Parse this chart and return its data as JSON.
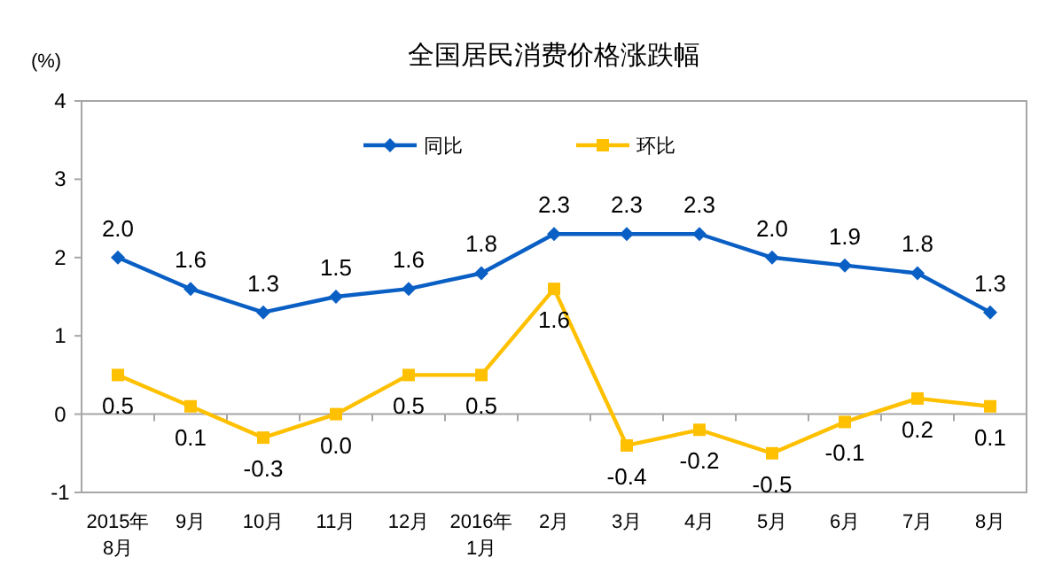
{
  "chart_data": {
    "type": "line",
    "title": "全国居民消费价格涨跌幅",
    "ylabel": "(%)",
    "categories": [
      "2015年\n8月",
      "9月",
      "10月",
      "11月",
      "12月",
      "2016年\n1月",
      "2月",
      "3月",
      "4月",
      "5月",
      "6月",
      "7月",
      "8月"
    ],
    "series": [
      {
        "name": "同比",
        "color": "#0a5fc4",
        "marker": "diamond",
        "values": [
          2.0,
          1.6,
          1.3,
          1.5,
          1.6,
          1.8,
          2.3,
          2.3,
          2.3,
          2.0,
          1.9,
          1.8,
          1.3
        ],
        "value_labels": [
          "2.0",
          "1.6",
          "1.3",
          "1.5",
          "1.6",
          "1.8",
          "2.3",
          "2.3",
          "2.3",
          "2.0",
          "1.9",
          "1.8",
          "1.3"
        ]
      },
      {
        "name": "环比",
        "color": "#ffc000",
        "marker": "square",
        "values": [
          0.5,
          0.1,
          -0.3,
          0.0,
          0.5,
          0.5,
          1.6,
          -0.4,
          -0.2,
          -0.5,
          -0.1,
          0.2,
          0.1
        ],
        "value_labels": [
          "0.5",
          "0.1",
          "-0.3",
          "0.0",
          "0.5",
          "0.5",
          "1.6",
          "-0.4",
          "-0.2",
          "-0.5",
          "-0.1",
          "0.2",
          "0.1"
        ]
      }
    ],
    "ylim": [
      -1,
      4
    ],
    "yticks": [
      -1,
      0,
      1,
      2,
      3,
      4
    ],
    "legend": "top",
    "line_style": "solid"
  }
}
